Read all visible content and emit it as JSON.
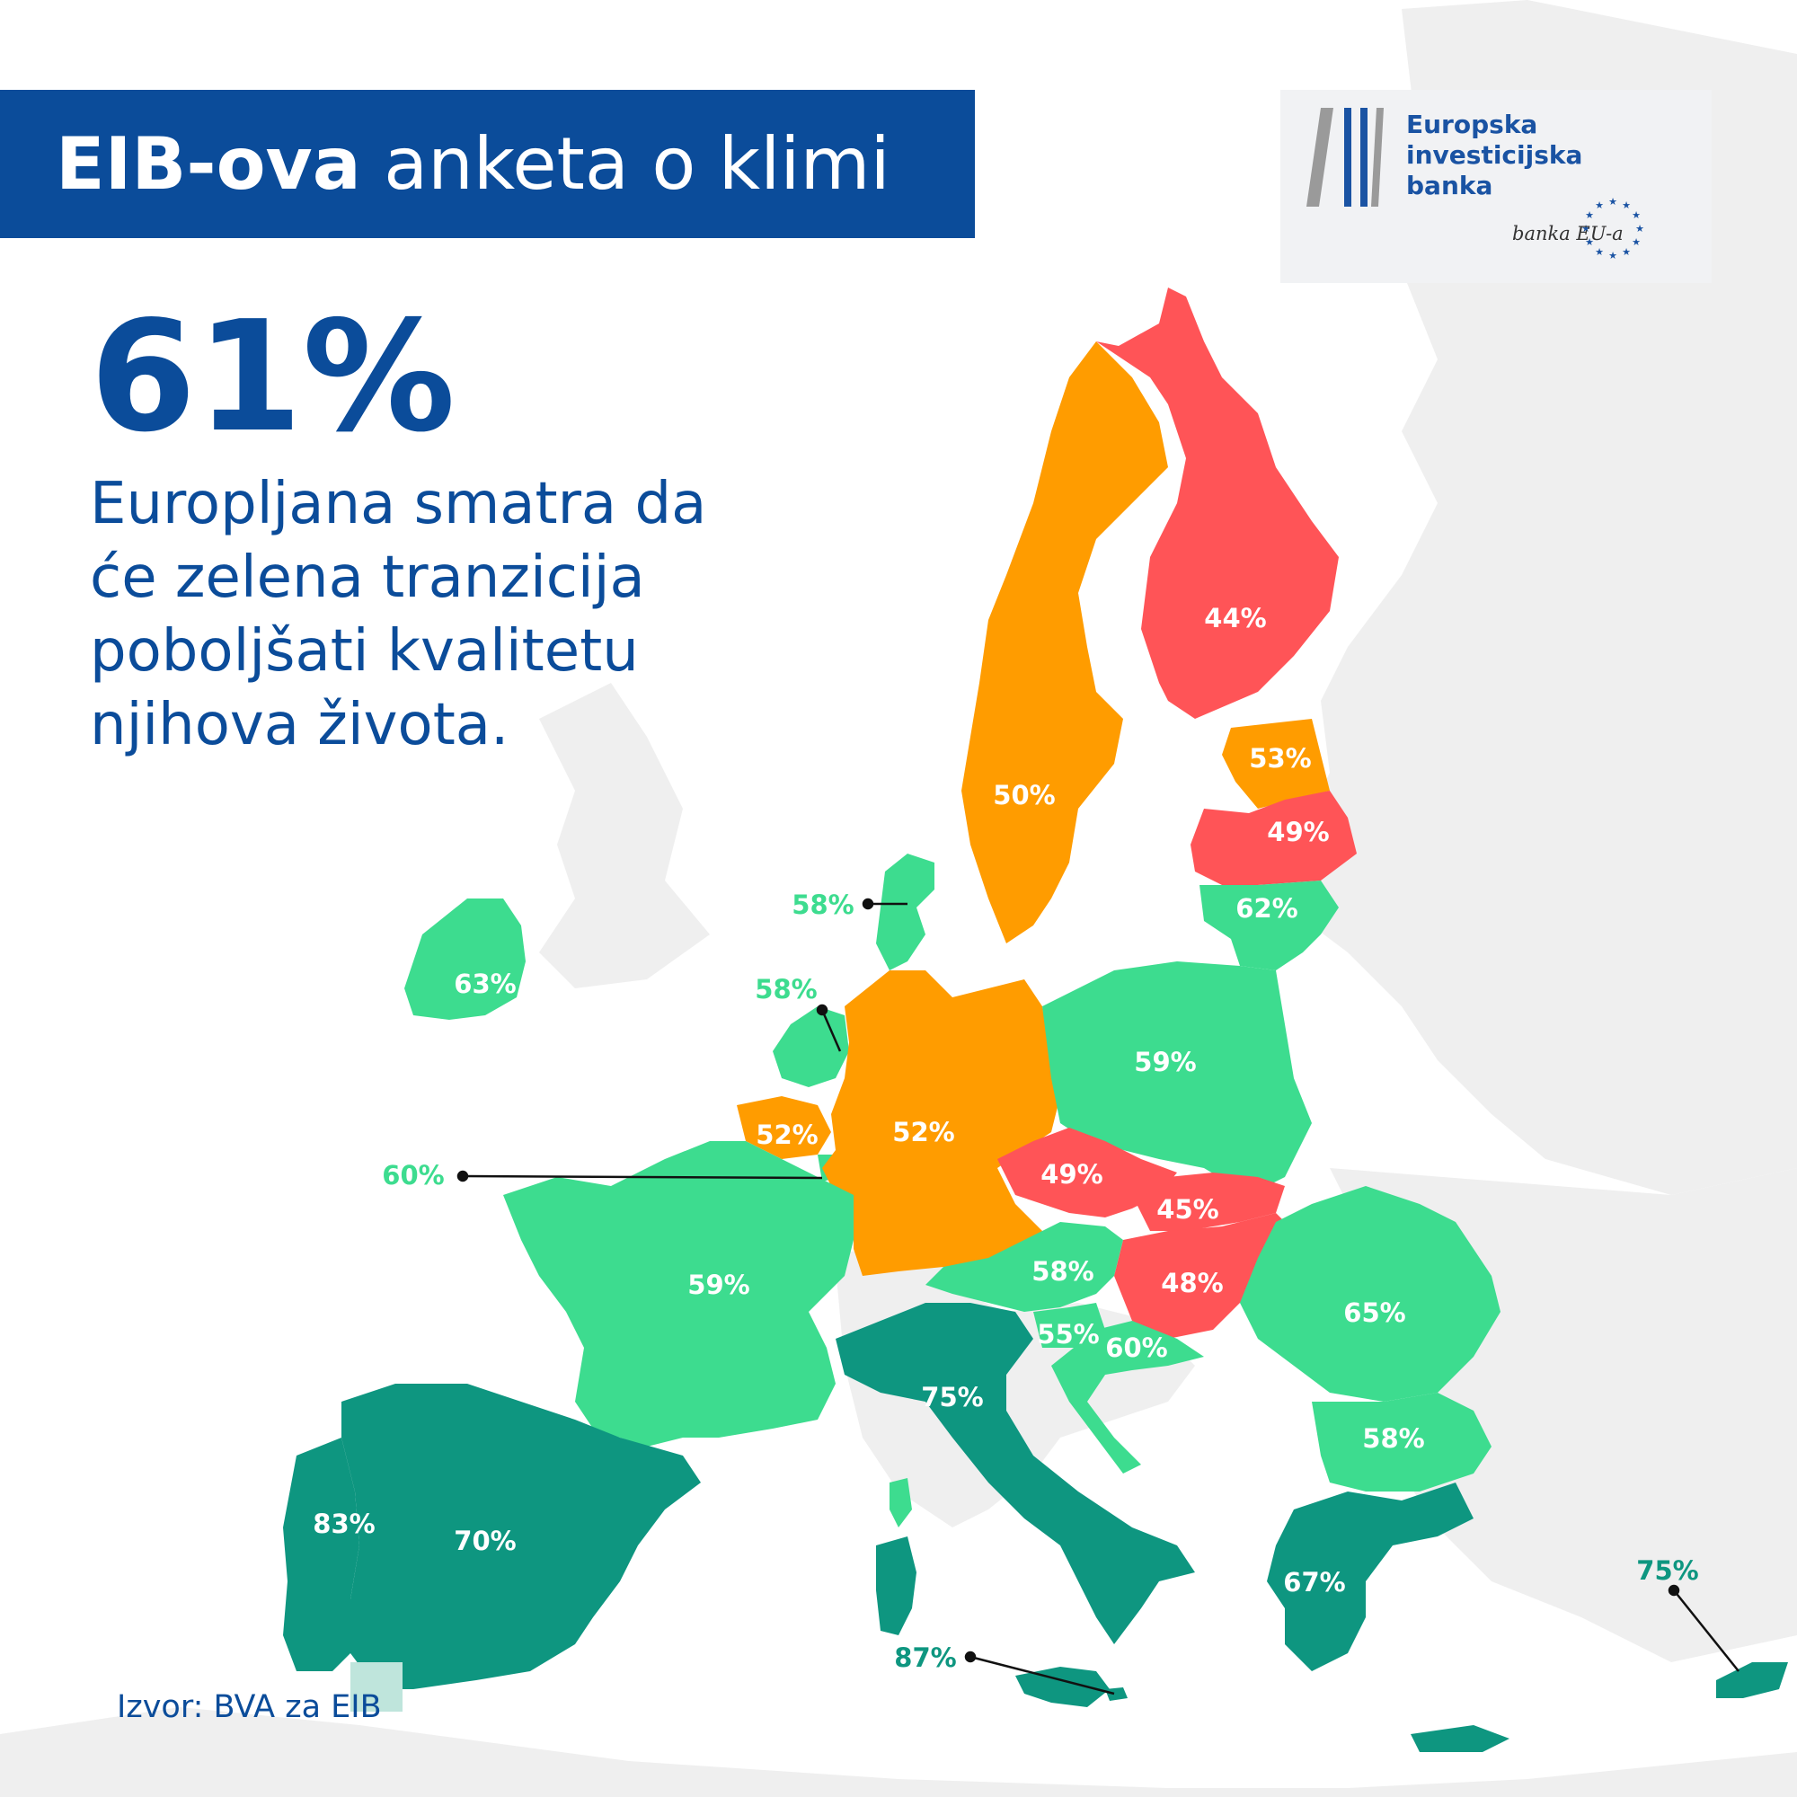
{
  "header": {
    "title_bold": "EIB-ova",
    "title_rest": " anketa o klimi"
  },
  "headline": {
    "stat": "61%",
    "lines": [
      "Europljana smatra da",
      "će zelena tranzicija",
      "poboljšati kvalitetu",
      "njihova života."
    ]
  },
  "logo": {
    "name_lines": [
      "Europska",
      "investicijska",
      "banka"
    ],
    "tagline": "banka EU-a",
    "icon": "eib-bars-logo",
    "stars_icon": "eu-stars-icon"
  },
  "source": "Izvor: BVA za EIB",
  "legend_colors": {
    "very_high": "#0e9680",
    "high": "#3ddc8f",
    "medium": "#ff9c00",
    "low": "#ff5457",
    "non_eu": "#efefef",
    "label_teal": "#0e9680",
    "label_green": "#3ddc8f"
  },
  "countries": [
    {
      "key": "finland",
      "value": "44%"
    },
    {
      "key": "sweden",
      "value": "50%"
    },
    {
      "key": "estonia",
      "value": "53%"
    },
    {
      "key": "latvia",
      "value": "49%"
    },
    {
      "key": "lithuania",
      "value": "62%"
    },
    {
      "key": "denmark",
      "value": "58%"
    },
    {
      "key": "ireland",
      "value": "63%"
    },
    {
      "key": "netherlands",
      "value": "58%"
    },
    {
      "key": "belgium",
      "value": "52%"
    },
    {
      "key": "luxembourg",
      "value": "60%"
    },
    {
      "key": "germany",
      "value": "52%"
    },
    {
      "key": "poland",
      "value": "59%"
    },
    {
      "key": "czechia",
      "value": "49%"
    },
    {
      "key": "slovakia",
      "value": "45%"
    },
    {
      "key": "hungary",
      "value": "48%"
    },
    {
      "key": "austria",
      "value": "58%"
    },
    {
      "key": "slovenia",
      "value": "55%"
    },
    {
      "key": "croatia",
      "value": "60%"
    },
    {
      "key": "romania",
      "value": "65%"
    },
    {
      "key": "bulgaria",
      "value": "58%"
    },
    {
      "key": "greece",
      "value": "67%"
    },
    {
      "key": "cyprus",
      "value": "75%"
    },
    {
      "key": "malta",
      "value": "87%"
    },
    {
      "key": "italy",
      "value": "75%"
    },
    {
      "key": "france",
      "value": "59%"
    },
    {
      "key": "spain",
      "value": "70%"
    },
    {
      "key": "portugal",
      "value": "83%"
    }
  ]
}
